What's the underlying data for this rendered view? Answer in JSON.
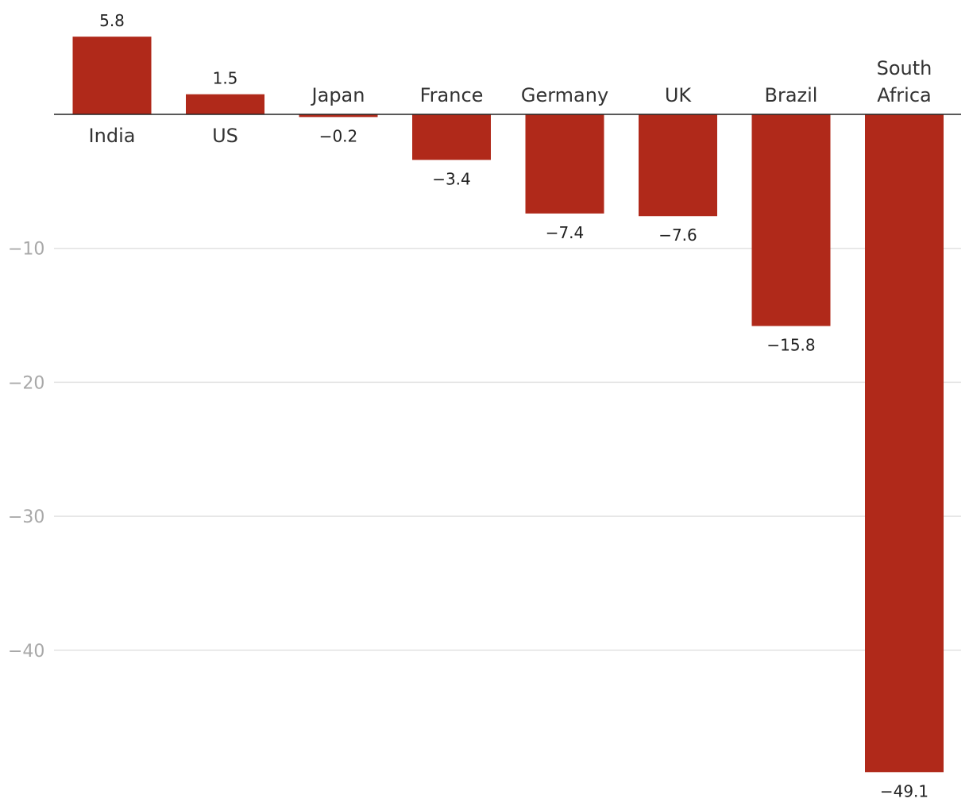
{
  "chart_data": {
    "type": "bar",
    "categories": [
      [
        "India"
      ],
      [
        "US"
      ],
      [
        "Japan"
      ],
      [
        "France"
      ],
      [
        "Germany"
      ],
      [
        "UK"
      ],
      [
        "Brazil"
      ],
      [
        "South",
        "Africa"
      ]
    ],
    "values": [
      5.8,
      1.5,
      -0.2,
      -3.4,
      -7.4,
      -7.6,
      -15.8,
      -49.1
    ],
    "value_labels": [
      "5.8",
      "1.5",
      "−0.2",
      "−3.4",
      "−7.4",
      "−7.6",
      "−15.8",
      "−49.1"
    ],
    "y_ticks": [
      {
        "value": -10,
        "label": "−10"
      },
      {
        "value": -20,
        "label": "−20"
      },
      {
        "value": -30,
        "label": "−30"
      },
      {
        "value": -40,
        "label": "−40"
      }
    ],
    "ylim": [
      -49.1,
      5.8
    ],
    "grid": true,
    "legend": "none",
    "title": "",
    "xlabel": "",
    "ylabel": "",
    "bar_color": "#b0291a"
  }
}
